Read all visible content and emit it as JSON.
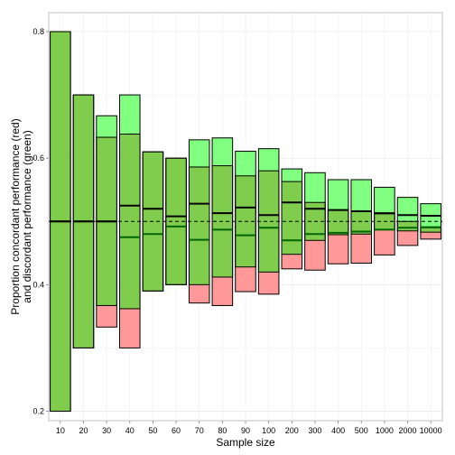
{
  "chart_data": {
    "type": "bar",
    "xlabel": "Sample size",
    "ylabel_lines": [
      "Proportion concordant performance (red)",
      "and discordant performance (green)"
    ],
    "categories": [
      "10",
      "20",
      "30",
      "40",
      "50",
      "60",
      "70",
      "80",
      "90",
      "100",
      "200",
      "300",
      "400",
      "500",
      "1000",
      "2000",
      "10000"
    ],
    "ylim": [
      0.185,
      0.83
    ],
    "yticks": [
      0.2,
      0.4,
      0.6,
      0.8
    ],
    "reference_line": 0.5,
    "grid": true,
    "colors": {
      "red": "#ff9999",
      "green": "#80ff80",
      "overlap": "#80cc4d",
      "mean_line": "#000000",
      "median_line": "#006600"
    },
    "series": [
      {
        "name": "Proportion concordant performance (red)",
        "color": "#ff9999",
        "low": [
          0.2,
          0.3,
          0.333,
          0.3,
          0.39,
          0.4,
          0.371,
          0.367,
          0.389,
          0.385,
          0.425,
          0.423,
          0.433,
          0.434,
          0.447,
          0.462,
          0.472
        ],
        "high": [
          0.8,
          0.7,
          0.633,
          0.638,
          0.61,
          0.6,
          0.586,
          0.588,
          0.572,
          0.58,
          0.563,
          0.53,
          0.518,
          0.516,
          0.512,
          0.5,
          0.49
        ],
        "center": [
          0.5,
          0.5,
          0.5,
          0.525,
          0.52,
          0.508,
          0.528,
          0.513,
          0.522,
          0.51,
          0.53,
          0.52,
          0.518,
          0.516,
          0.513,
          0.51,
          0.509
        ]
      },
      {
        "name": "and discordant performance (green)",
        "color": "#80ff80",
        "low": [
          0.2,
          0.3,
          0.367,
          0.362,
          0.39,
          0.4,
          0.4,
          0.412,
          0.428,
          0.42,
          0.448,
          0.47,
          0.479,
          0.48,
          0.487,
          0.485,
          0.483
        ],
        "high": [
          0.8,
          0.7,
          0.667,
          0.7,
          0.61,
          0.6,
          0.629,
          0.632,
          0.611,
          0.615,
          0.583,
          0.577,
          0.566,
          0.566,
          0.554,
          0.538,
          0.528
        ],
        "center": [
          0.5,
          0.5,
          0.5,
          0.475,
          0.48,
          0.492,
          0.471,
          0.487,
          0.478,
          0.49,
          0.47,
          0.48,
          0.482,
          0.484,
          0.487,
          0.49,
          0.491
        ]
      }
    ]
  }
}
